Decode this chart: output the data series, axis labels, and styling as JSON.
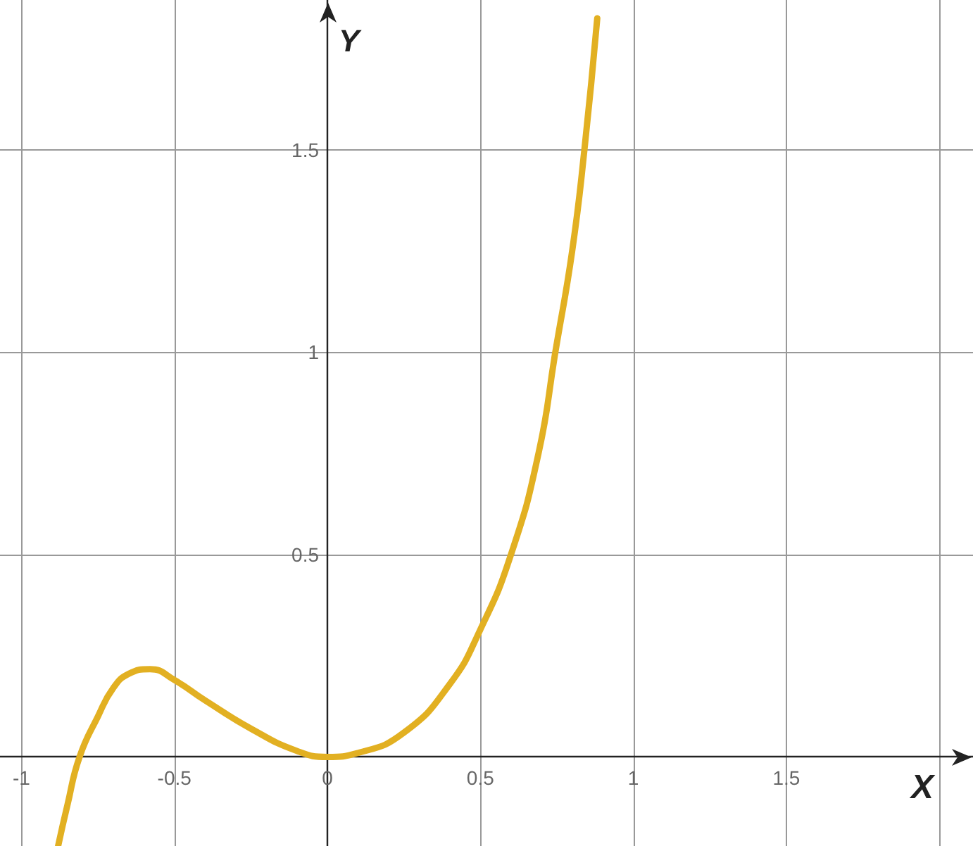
{
  "chart_data": {
    "type": "line",
    "xlabel": "X",
    "ylabel": "Y",
    "x": [
      -0.88,
      -0.85,
      -0.81,
      -0.75,
      -0.7,
      -0.65,
      -0.58,
      -0.5,
      -0.4,
      -0.25,
      -0.1,
      0,
      0.1,
      0.25,
      0.4,
      0.5,
      0.6,
      0.69,
      0.745,
      0.8,
      0.84,
      0.882
    ],
    "series": [
      {
        "color": "#e2b022",
        "values": [
          -0.22,
          -0.12,
          0,
          0.1,
          0.17,
          0.205,
          0.217,
          0.19,
          0.14,
          0.07,
          0.015,
          0,
          0.01,
          0.06,
          0.18,
          0.315,
          0.5,
          0.75,
          1,
          1.25,
          1.5,
          1.825
        ]
      }
    ],
    "xlim": [
      -1.07,
      2.11
    ],
    "ylim": [
      -0.22,
      1.87
    ],
    "xticks": [
      -1,
      -0.5,
      0,
      0.5,
      1,
      1.5,
      {
        "value": 2,
        "label": null
      }
    ],
    "yticks": [
      {
        "value": 0,
        "label": null
      },
      0.5,
      1,
      1.5
    ],
    "grid": true,
    "marker": "none",
    "line_style": "solid"
  }
}
